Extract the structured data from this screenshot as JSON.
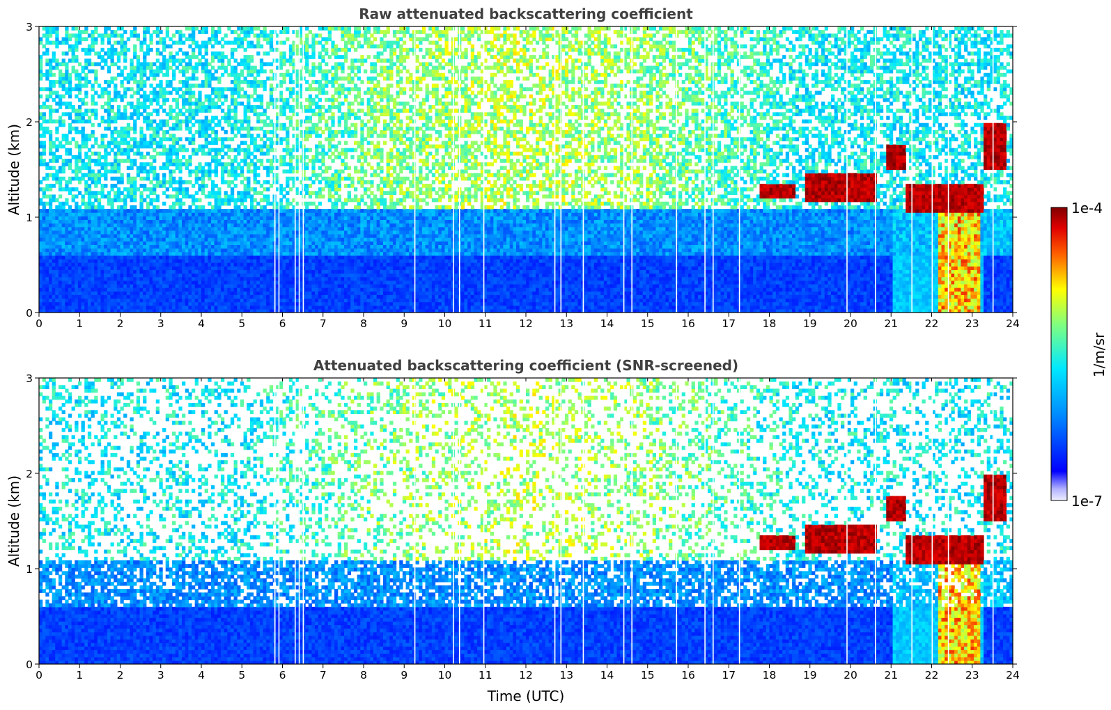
{
  "chart_data": [
    {
      "type": "heatmap",
      "title": "Raw attenuated backscattering coefficient",
      "xlabel": "",
      "ylabel": "Altitude (km)",
      "xlim": [
        0,
        24
      ],
      "ylim": [
        0,
        3
      ],
      "x_ticks": [
        "0",
        "1",
        "2",
        "3",
        "4",
        "5",
        "6",
        "7",
        "8",
        "9",
        "10",
        "11",
        "12",
        "13",
        "14",
        "15",
        "16",
        "17",
        "18",
        "19",
        "20",
        "21",
        "22",
        "23",
        "24"
      ],
      "y_ticks": [
        "0",
        "1",
        "2",
        "3"
      ],
      "cloud_layers": [
        {
          "t_start": 17.8,
          "t_end": 18.6,
          "alt_bottom": 1.2,
          "alt_top": 1.35
        },
        {
          "t_start": 18.9,
          "t_end": 20.6,
          "alt_bottom": 1.15,
          "alt_top": 1.45
        },
        {
          "t_start": 20.9,
          "t_end": 21.4,
          "alt_bottom": 1.5,
          "alt_top": 1.75
        },
        {
          "t_start": 21.4,
          "t_end": 23.3,
          "alt_bottom": 1.05,
          "alt_top": 1.35
        },
        {
          "t_start": 23.3,
          "t_end": 23.8,
          "alt_bottom": 1.5,
          "alt_top": 2.0
        }
      ]
    },
    {
      "type": "heatmap",
      "title": "Attenuated backscattering coefficient (SNR-screened)",
      "xlabel": "Time (UTC)",
      "ylabel": "Altitude (km)",
      "xlim": [
        0,
        24
      ],
      "ylim": [
        0,
        3
      ],
      "x_ticks": [
        "0",
        "1",
        "2",
        "3",
        "4",
        "5",
        "6",
        "7",
        "8",
        "9",
        "10",
        "11",
        "12",
        "13",
        "14",
        "15",
        "16",
        "17",
        "18",
        "19",
        "20",
        "21",
        "22",
        "23",
        "24"
      ],
      "y_ticks": [
        "0",
        "1",
        "2",
        "3"
      ]
    }
  ],
  "colorbar": {
    "label": "1/m/sr",
    "max_label": "1e-4",
    "min_label": "1e-7",
    "scale": "log",
    "range": [
      1e-07,
      0.0001
    ],
    "colormap": "jet",
    "colors": [
      "#000080",
      "#0000ff",
      "#0080ff",
      "#00e0ff",
      "#60ff90",
      "#d0ff30",
      "#ffd000",
      "#ff6000",
      "#e00000",
      "#800000"
    ]
  }
}
